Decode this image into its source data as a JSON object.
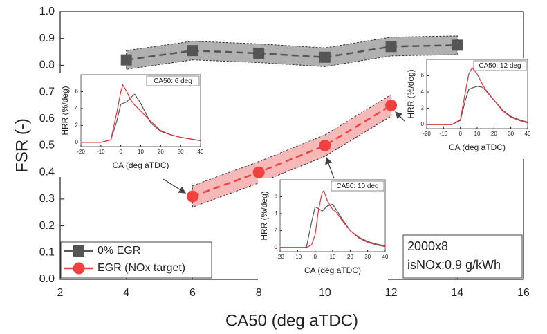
{
  "chart_data": [
    {
      "type": "line",
      "xlabel": "CA50 (deg aTDC)",
      "ylabel": "FSR (-)",
      "xlim": [
        2,
        16
      ],
      "xticks": [
        2,
        4,
        6,
        8,
        10,
        12,
        14,
        16
      ],
      "ylim": [
        0,
        1
      ],
      "yticks": [
        {
          "value": 0,
          "label": "0.0"
        },
        0.1,
        0.2,
        0.3,
        0.4,
        0.5,
        0.6,
        0.7,
        0.8,
        0.9,
        {
          "value": 1,
          "label": "1.0"
        }
      ],
      "legend": "lower left",
      "series": [
        {
          "name": "0% EGR",
          "color": "#555555",
          "band_color": "#b0b0b0",
          "marker": "square",
          "x": [
            4,
            6,
            8,
            10,
            12,
            14
          ],
          "values": [
            0.82,
            0.855,
            0.845,
            0.83,
            0.87,
            0.875
          ],
          "errors": [
            0.035,
            0.035,
            0.035,
            0.035,
            0.035,
            0.035
          ]
        },
        {
          "name": "EGR (NOx target)",
          "color": "#f04040",
          "band_color": "#f7b8b8",
          "marker": "circle",
          "x": [
            6,
            8,
            10,
            12
          ],
          "values": [
            0.31,
            0.4,
            0.5,
            0.65
          ],
          "errors": [
            0.04,
            0.04,
            0.04,
            0.04
          ]
        }
      ],
      "annotations": [
        "2000x8",
        "isNOx:0.9 g/kWh"
      ]
    },
    {
      "type": "line",
      "title": "CA50: 6 deg",
      "xlabel": "CA (deg aTDC)",
      "ylabel": "HRR (%/deg)",
      "xlim": [
        -20,
        40
      ],
      "xticks": [
        -20,
        -10,
        0,
        10,
        20,
        30,
        40
      ],
      "ylim": [
        -0.5,
        8
      ],
      "yticks": [
        0,
        2,
        4,
        6
      ],
      "x": [
        -20,
        -10,
        -5,
        -2,
        0,
        1,
        3,
        5,
        7,
        10,
        15,
        20,
        25,
        30,
        35,
        40
      ],
      "series": [
        {
          "color": "#555555",
          "values": [
            0,
            0,
            0.3,
            2.5,
            4.5,
            4.6,
            4.8,
            5.3,
            5.7,
            4.6,
            2.3,
            1.3,
            0.9,
            0.6,
            0.4,
            0.2
          ]
        },
        {
          "color": "#e8303a",
          "values": [
            0,
            0,
            0.3,
            3.5,
            6,
            6.8,
            6,
            5,
            4.4,
            3.7,
            2.5,
            1.4,
            0.9,
            0.6,
            0.4,
            0.2
          ]
        }
      ]
    },
    {
      "type": "line",
      "title": "CA50: 10 deg",
      "xlabel": "CA (deg aTDC)",
      "ylabel": "HRR (%/deg)",
      "xlim": [
        -20,
        40
      ],
      "xticks": [
        -20,
        -10,
        0,
        10,
        20,
        30,
        40
      ],
      "ylim": [
        -0.5,
        8
      ],
      "yticks": [
        0,
        2,
        4,
        6
      ],
      "x": [
        -20,
        -10,
        -5,
        -2,
        0,
        2,
        4,
        5,
        7,
        10,
        12,
        15,
        20,
        25,
        30,
        35,
        40
      ],
      "series": [
        {
          "color": "#555555",
          "values": [
            0,
            0,
            0,
            3,
            4.8,
            4.6,
            4.3,
            4.5,
            4.9,
            5.1,
            4.5,
            3.5,
            2,
            1.2,
            0.7,
            0.4,
            0.2
          ]
        },
        {
          "color": "#e8303a",
          "values": [
            0,
            0,
            0,
            0.3,
            1.5,
            4.5,
            6.5,
            6.7,
            5.5,
            4.5,
            4.2,
            3.3,
            2,
            1.1,
            0.6,
            0.3,
            0.1
          ]
        }
      ]
    },
    {
      "type": "line",
      "title": "CA50: 12 deg",
      "xlabel": "CA (deg aTDC)",
      "ylabel": "HRR (%/deg)",
      "xlim": [
        -20,
        40
      ],
      "xticks": [
        -20,
        -10,
        0,
        10,
        20,
        30,
        40
      ],
      "ylim": [
        -0.5,
        8
      ],
      "yticks": [
        0,
        2,
        4,
        6
      ],
      "x": [
        -20,
        -10,
        -5,
        0,
        3,
        5,
        7,
        10,
        13,
        15,
        20,
        25,
        30,
        35,
        40
      ],
      "series": [
        {
          "color": "#555555",
          "values": [
            0,
            0,
            0,
            0.5,
            3,
            4.3,
            4.5,
            4.7,
            4.6,
            4.2,
            3,
            1.8,
            1,
            0.6,
            0.3
          ]
        },
        {
          "color": "#e8303a",
          "values": [
            0,
            0,
            0,
            0.6,
            4,
            6.2,
            7,
            6.2,
            5,
            4.3,
            3,
            1.7,
            0.9,
            0.5,
            0.2
          ]
        }
      ]
    }
  ]
}
